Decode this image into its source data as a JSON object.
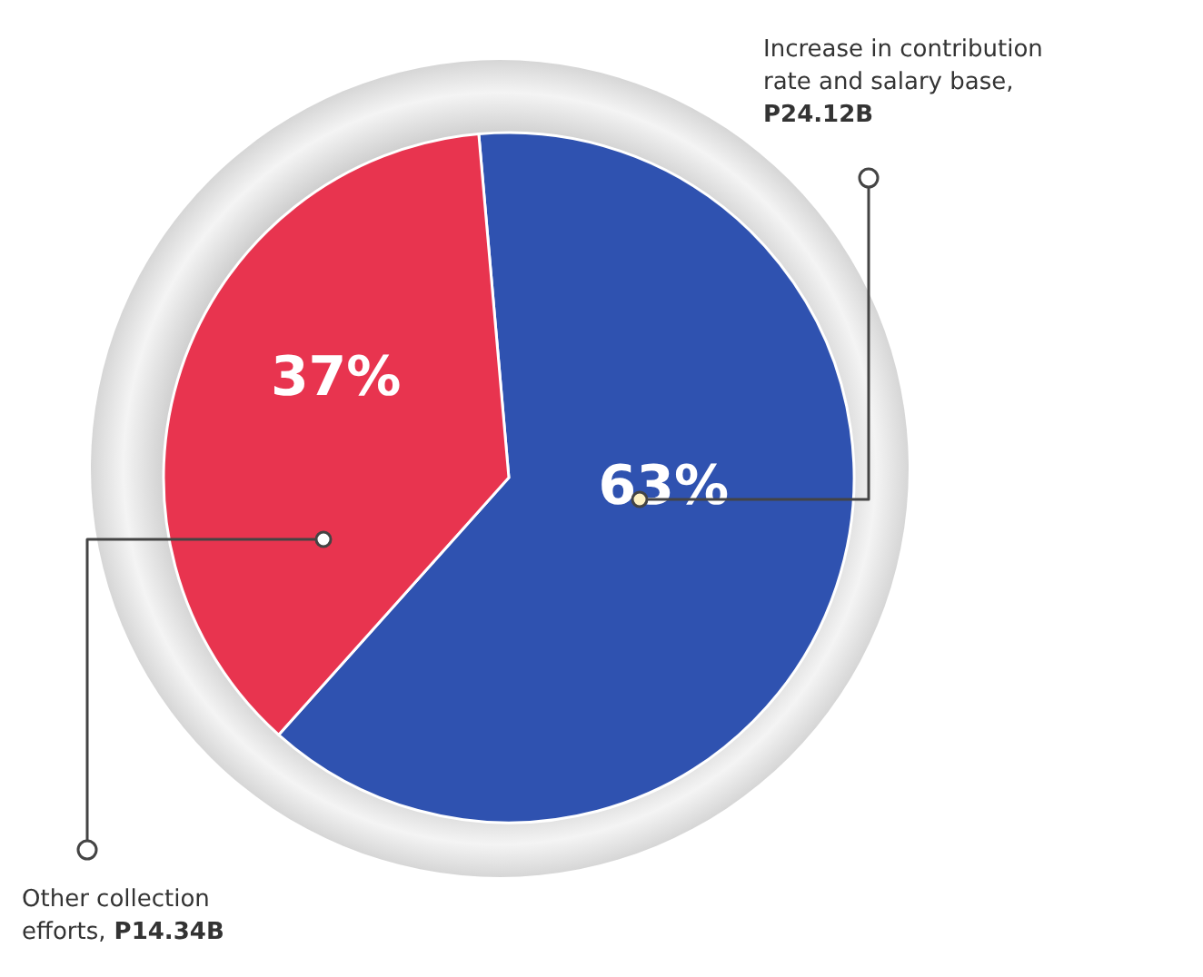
{
  "chart_data": {
    "type": "pie",
    "categories": [
      "Increase in contribution rate and salary base, P24.12B",
      "Other collection efforts, P14.34B"
    ],
    "values": [
      63,
      37
    ],
    "colors": [
      "#2f52b0",
      "#e8344f"
    ],
    "value_labels": [
      "63%",
      "37%"
    ]
  }
}
